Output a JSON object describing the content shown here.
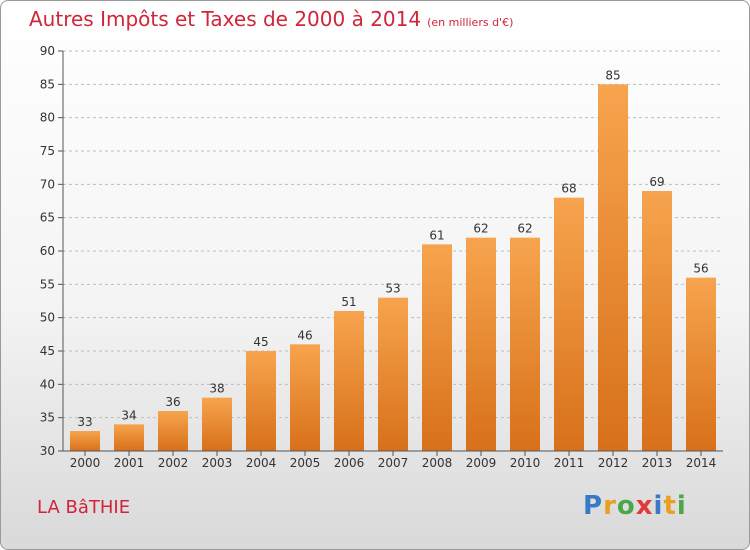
{
  "title": "Autres Impôts et Taxes de 2000 à 2014",
  "subtitle": "(en milliers d'€)",
  "place": "LA BâTHIE",
  "logo": {
    "letters": [
      "P",
      "r",
      "o",
      "x",
      "i",
      "t",
      "i"
    ],
    "colors": [
      "#3a78c8",
      "#e8a020",
      "#4aa84a",
      "#e23a3a",
      "#3a78c8",
      "#e8a020",
      "#4aa84a"
    ]
  },
  "colors": {
    "title": "#d0253a",
    "bar_top": "#f7a44e",
    "bar_bottom": "#d8701a"
  },
  "chart_data": {
    "type": "bar",
    "title": "Autres Impôts et Taxes de 2000 à 2014",
    "subtitle": "(en milliers d'€)",
    "xlabel": "",
    "ylabel": "",
    "categories": [
      "2000",
      "2001",
      "2002",
      "2003",
      "2004",
      "2005",
      "2006",
      "2007",
      "2008",
      "2009",
      "2010",
      "2011",
      "2012",
      "2013",
      "2014"
    ],
    "values": [
      33,
      34,
      36,
      38,
      45,
      46,
      51,
      53,
      61,
      62,
      62,
      68,
      85,
      69,
      56
    ],
    "ylim": [
      30,
      90
    ],
    "yticks": [
      30,
      35,
      40,
      45,
      50,
      55,
      60,
      65,
      70,
      75,
      80,
      85,
      90
    ],
    "grid": true,
    "legend": "none"
  }
}
